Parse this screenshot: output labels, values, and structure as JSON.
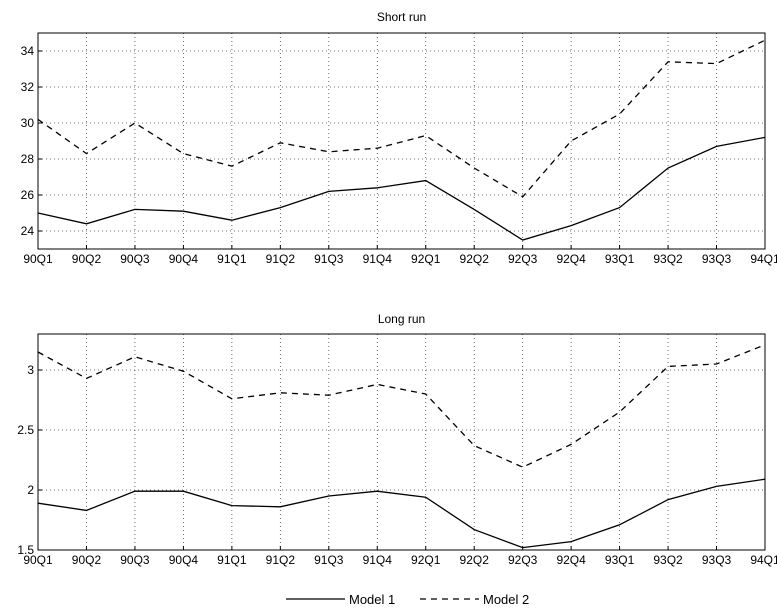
{
  "chart_data": [
    {
      "type": "line",
      "title": "Short run",
      "categories": [
        "90Q1",
        "90Q2",
        "90Q3",
        "90Q4",
        "91Q1",
        "91Q2",
        "91Q3",
        "91Q4",
        "92Q1",
        "92Q2",
        "92Q3",
        "92Q4",
        "93Q1",
        "93Q2",
        "93Q3",
        "94Q1"
      ],
      "ylim": [
        23,
        35
      ],
      "yticks": [
        24,
        26,
        28,
        30,
        32,
        34
      ],
      "grid": true,
      "series": [
        {
          "name": "Model 1",
          "style": "solid",
          "values": [
            25.0,
            24.4,
            25.2,
            25.1,
            24.6,
            25.3,
            26.2,
            26.4,
            26.8,
            25.2,
            23.5,
            24.3,
            25.3,
            27.5,
            28.7,
            29.2
          ]
        },
        {
          "name": "Model 2",
          "style": "dashed",
          "values": [
            30.2,
            28.3,
            30.0,
            28.3,
            27.6,
            28.9,
            28.4,
            28.6,
            29.3,
            27.5,
            25.9,
            29.0,
            30.5,
            33.4,
            33.3,
            34.6
          ]
        }
      ]
    },
    {
      "type": "line",
      "title": "Long run",
      "categories": [
        "90Q1",
        "90Q2",
        "90Q3",
        "90Q4",
        "91Q1",
        "91Q2",
        "91Q3",
        "91Q4",
        "92Q1",
        "92Q2",
        "92Q3",
        "92Q4",
        "93Q1",
        "93Q2",
        "93Q3",
        "94Q1"
      ],
      "ylim": [
        1.5,
        3.3
      ],
      "yticks": [
        1.5,
        2,
        2.5,
        3
      ],
      "ytick_labels": [
        "1.5",
        "2",
        "2.5",
        "3"
      ],
      "grid": true,
      "series": [
        {
          "name": "Model 1",
          "style": "solid",
          "values": [
            1.89,
            1.83,
            1.99,
            1.99,
            1.87,
            1.86,
            1.95,
            1.99,
            1.94,
            1.67,
            1.52,
            1.57,
            1.71,
            1.92,
            2.03,
            2.09
          ]
        },
        {
          "name": "Model 2",
          "style": "dashed",
          "values": [
            3.15,
            2.93,
            3.11,
            2.99,
            2.76,
            2.81,
            2.79,
            2.88,
            2.8,
            2.37,
            2.19,
            2.38,
            2.65,
            3.03,
            3.05,
            3.21
          ]
        }
      ]
    }
  ],
  "legend": {
    "placement": "bottom-center",
    "items": [
      {
        "label": "Model 1",
        "style": "solid"
      },
      {
        "label": "Model 2",
        "style": "dashed"
      }
    ]
  }
}
